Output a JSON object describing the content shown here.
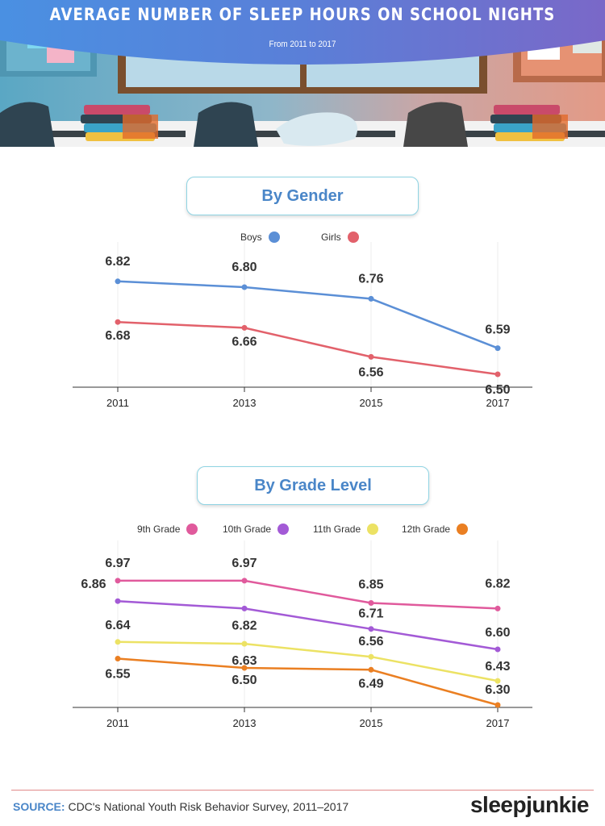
{
  "header": {
    "title": "AVERAGE NUMBER OF SLEEP HOURS ON SCHOOL NIGHTS",
    "subtitle": "From 2011 to 2017"
  },
  "sections": {
    "gender_title": "By Gender",
    "grade_title": "By Grade Level"
  },
  "colors": {
    "boys": "#5b8fd6",
    "girls": "#e2616b",
    "grade9": "#e05a9c",
    "grade10": "#a35ad6",
    "grade11": "#ece264",
    "grade12": "#ea7f22"
  },
  "chart_data": [
    {
      "type": "line",
      "title": "By Gender",
      "x": [
        "2011",
        "2013",
        "2015",
        "2017"
      ],
      "series": [
        {
          "name": "Boys",
          "values": [
            6.82,
            6.8,
            6.76,
            6.59
          ]
        },
        {
          "name": "Girls",
          "values": [
            6.68,
            6.66,
            6.56,
            6.5
          ]
        }
      ],
      "legend": "top-center",
      "grid": false
    },
    {
      "type": "line",
      "title": "By Grade Level",
      "x": [
        "2011",
        "2013",
        "2015",
        "2017"
      ],
      "series": [
        {
          "name": "9th Grade",
          "values": [
            6.97,
            6.97,
            6.85,
            6.82
          ]
        },
        {
          "name": "10th Grade",
          "values": [
            6.86,
            6.82,
            6.71,
            6.6
          ]
        },
        {
          "name": "11th Grade",
          "values": [
            6.64,
            6.63,
            6.56,
            6.43
          ]
        },
        {
          "name": "12th Grade",
          "values": [
            6.55,
            6.5,
            6.49,
            6.3
          ]
        }
      ],
      "legend": "top-center",
      "grid": false
    }
  ],
  "footer": {
    "source_label": "SOURCE:",
    "source_text": " CDC's National Youth Risk Behavior Survey, 2011–2017",
    "brand": "sleepjunkie"
  }
}
